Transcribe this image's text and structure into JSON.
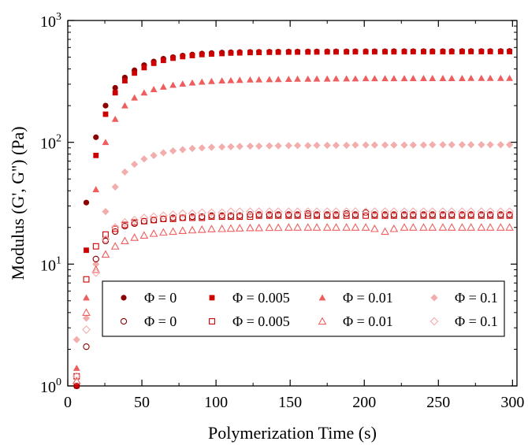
{
  "chart_data": {
    "type": "scatter",
    "title": "",
    "xlabel": "Polymerization Time (s)",
    "ylabel": "Modulus (G', G'') (Pa)",
    "xlim": [
      0,
      303
    ],
    "ylim": [
      1,
      1000
    ],
    "yscale": "log",
    "x_ticks": [
      0,
      50,
      100,
      150,
      200,
      250,
      300
    ],
    "x_tick_labels": [
      "0",
      "50",
      "100",
      "150",
      "200",
      "250",
      "300"
    ],
    "y_ticks": [
      1,
      10,
      100,
      1000
    ],
    "y_tick_labels": [
      {
        "base": "10",
        "exp": "0"
      },
      {
        "base": "10",
        "exp": "1"
      },
      {
        "base": "10",
        "exp": "2"
      },
      {
        "base": "10",
        "exp": "3"
      }
    ],
    "grid": false,
    "legend_position": "lower-right",
    "series": [
      {
        "name": "Φ = 0",
        "modulus": "G'",
        "marker": "circle",
        "filled": true,
        "color": "#8b0000",
        "x": [
          6,
          12.5,
          19,
          25.5,
          32,
          38.5,
          45,
          51.5,
          58,
          64.5,
          71,
          77.5,
          84,
          90.5,
          97,
          104,
          110,
          116,
          123,
          129,
          136,
          142,
          149,
          155,
          162,
          168,
          175,
          181,
          188,
          194,
          201,
          207,
          214,
          220,
          227,
          233,
          240,
          246,
          253,
          259,
          266,
          272,
          279,
          285,
          292,
          298
        ],
        "y": [
          1.0,
          32,
          110,
          200,
          280,
          340,
          390,
          430,
          460,
          485,
          500,
          515,
          525,
          535,
          540,
          545,
          548,
          550,
          552,
          553,
          554,
          555,
          556,
          556,
          557,
          557,
          558,
          558,
          558,
          559,
          559,
          559,
          559,
          560,
          560,
          560,
          560,
          560,
          560,
          561,
          561,
          561,
          561,
          561,
          561,
          562
        ]
      },
      {
        "name": "Φ = 0.005",
        "modulus": "G'",
        "marker": "square",
        "filled": true,
        "color": "#cc0000",
        "x": [
          6,
          12.5,
          19,
          25.5,
          32,
          38.5,
          45,
          51.5,
          58,
          64.5,
          71,
          77.5,
          84,
          90.5,
          97,
          104,
          110,
          116,
          123,
          129,
          136,
          142,
          149,
          155,
          162,
          168,
          175,
          181,
          188,
          194,
          201,
          207,
          214,
          220,
          227,
          233,
          240,
          246,
          253,
          259,
          266,
          272,
          279,
          285,
          292,
          298
        ],
        "y": [
          1.0,
          13,
          78,
          170,
          255,
          320,
          370,
          410,
          445,
          470,
          490,
          505,
          515,
          525,
          530,
          535,
          540,
          542,
          545,
          546,
          548,
          549,
          550,
          550,
          551,
          551,
          552,
          552,
          552,
          553,
          553,
          553,
          553,
          553,
          554,
          554,
          554,
          554,
          554,
          554,
          555,
          555,
          555,
          555,
          555,
          555
        ]
      },
      {
        "name": "Φ = 0.01",
        "modulus": "G'",
        "marker": "triangle",
        "filled": true,
        "color": "#ee5e5e",
        "x": [
          6,
          12.5,
          19,
          25.5,
          32,
          38.5,
          45,
          51.5,
          58,
          64.5,
          71,
          77.5,
          84,
          90.5,
          97,
          104,
          110,
          116,
          123,
          129,
          136,
          142,
          149,
          155,
          162,
          168,
          175,
          181,
          188,
          194,
          201,
          207,
          214,
          220,
          227,
          233,
          240,
          246,
          253,
          259,
          266,
          272,
          279,
          285,
          292,
          298
        ],
        "y": [
          1.4,
          5.3,
          41,
          100,
          155,
          200,
          232,
          255,
          272,
          285,
          295,
          302,
          308,
          313,
          317,
          320,
          322,
          324,
          326,
          327,
          328,
          329,
          330,
          331,
          331,
          332,
          332,
          333,
          333,
          333,
          334,
          334,
          334,
          334,
          334,
          335,
          335,
          335,
          335,
          335,
          335,
          336,
          336,
          336,
          336,
          336
        ]
      },
      {
        "name": "Φ = 0.1",
        "modulus": "G'",
        "marker": "diamond",
        "filled": true,
        "color": "#f4adad",
        "x": [
          6,
          12.5,
          19,
          25.5,
          32,
          38.5,
          45,
          51.5,
          58,
          64.5,
          71,
          77.5,
          84,
          90.5,
          97,
          104,
          110,
          116,
          123,
          129,
          136,
          142,
          149,
          155,
          162,
          168,
          175,
          181,
          188,
          194,
          201,
          207,
          214,
          220,
          227,
          233,
          240,
          246,
          253,
          259,
          266,
          272,
          279,
          285,
          292,
          298
        ],
        "y": [
          2.4,
          3.6,
          10,
          27,
          43,
          57,
          66,
          73,
          78,
          82,
          85,
          87,
          89,
          90,
          91,
          91.5,
          92,
          92.5,
          93,
          93,
          93.5,
          93.5,
          94,
          94,
          94,
          94.5,
          94.5,
          94.5,
          94.5,
          95,
          95,
          95,
          95,
          95,
          95,
          95,
          95,
          95.5,
          95.5,
          95.5,
          95.5,
          95.5,
          95.5,
          95.5,
          95.5,
          95.5
        ]
      },
      {
        "name": "Φ = 0",
        "modulus": "G''",
        "marker": "circle",
        "filled": false,
        "color": "#8b0000",
        "x": [
          6,
          12.5,
          19,
          25.5,
          32,
          38.5,
          45,
          51.5,
          58,
          64.5,
          71,
          77.5,
          84,
          90.5,
          97,
          104,
          110,
          116,
          123,
          129,
          136,
          142,
          149,
          155,
          162,
          168,
          175,
          181,
          188,
          194,
          201,
          207,
          214,
          220,
          227,
          233,
          240,
          246,
          253,
          259,
          266,
          272,
          279,
          285,
          292,
          298
        ],
        "y": [
          1.0,
          2.1,
          11,
          15.5,
          18.5,
          20.5,
          21.5,
          22.5,
          23,
          23.5,
          24,
          24,
          24.5,
          24.5,
          25,
          25,
          25,
          25,
          25.5,
          25.5,
          25.5,
          25.5,
          25.5,
          25.5,
          26,
          25.5,
          25.5,
          25.5,
          26,
          25.5,
          26.5,
          25.5,
          25.5,
          25.5,
          25.5,
          25.5,
          25.5,
          25.5,
          25.5,
          25.5,
          25.5,
          25.5,
          25.5,
          25.5,
          25.5,
          25.5
        ]
      },
      {
        "name": "Φ = 0.005",
        "modulus": "G''",
        "marker": "square",
        "filled": false,
        "color": "#cc0000",
        "x": [
          6,
          12.5,
          19,
          25.5,
          32,
          38.5,
          45,
          51.5,
          58,
          64.5,
          71,
          77.5,
          84,
          90.5,
          97,
          104,
          110,
          116,
          123,
          129,
          136,
          142,
          149,
          155,
          162,
          168,
          175,
          181,
          188,
          194,
          201,
          207,
          214,
          220,
          227,
          233,
          240,
          246,
          253,
          259,
          266,
          272,
          279,
          285,
          292,
          298
        ],
        "y": [
          1.2,
          7.5,
          14,
          17.5,
          19.5,
          21,
          22,
          22.5,
          23,
          23.5,
          23.5,
          24,
          24,
          24,
          24.5,
          24.5,
          24.5,
          24.5,
          24.5,
          25,
          25,
          25,
          25,
          25,
          25,
          25,
          25,
          25,
          25,
          25,
          25,
          25,
          25,
          25,
          25,
          25,
          25,
          25,
          25,
          25,
          25,
          25,
          25,
          25,
          25,
          25
        ]
      },
      {
        "name": "Φ = 0.01",
        "modulus": "G''",
        "marker": "triangle",
        "filled": false,
        "color": "#ee5e5e",
        "x": [
          6,
          12.5,
          19,
          25.5,
          32,
          38.5,
          45,
          51.5,
          58,
          64.5,
          71,
          77.5,
          84,
          90.5,
          97,
          104,
          110,
          116,
          123,
          129,
          136,
          142,
          149,
          155,
          162,
          168,
          175,
          181,
          188,
          194,
          201,
          207,
          214,
          220,
          227,
          233,
          240,
          246,
          253,
          259,
          266,
          272,
          279,
          285,
          292,
          298
        ],
        "y": [
          1.1,
          4.0,
          9,
          12,
          14,
          15.5,
          16.5,
          17.2,
          17.8,
          18.2,
          18.5,
          18.8,
          19,
          19.2,
          19.4,
          19.5,
          19.6,
          19.7,
          19.8,
          19.8,
          19.9,
          19.9,
          20,
          20,
          20,
          20,
          20,
          20,
          20,
          20,
          20,
          19.5,
          18.5,
          19.5,
          20,
          20,
          20,
          20,
          20,
          20,
          20,
          20,
          20,
          20,
          20,
          20
        ]
      },
      {
        "name": "Φ = 0.1",
        "modulus": "G''",
        "marker": "diamond",
        "filled": false,
        "color": "#f4adad",
        "x": [
          6,
          12.5,
          19,
          25.5,
          32,
          38.5,
          45,
          51.5,
          58,
          64.5,
          71,
          77.5,
          84,
          90.5,
          97,
          104,
          110,
          116,
          123,
          129,
          136,
          142,
          149,
          155,
          162,
          168,
          175,
          181,
          188,
          194,
          201,
          207,
          214,
          220,
          227,
          233,
          240,
          246,
          253,
          259,
          266,
          272,
          279,
          285,
          292,
          298
        ],
        "y": [
          1.2,
          2.9,
          8.5,
          16,
          20,
          22,
          23,
          24,
          24.5,
          25,
          25.5,
          26,
          26,
          26.5,
          26.5,
          26.5,
          27,
          27,
          27,
          27,
          27,
          27,
          27,
          27,
          27,
          27,
          27,
          27,
          27,
          27,
          27,
          27,
          27,
          27,
          27,
          27,
          27,
          27,
          27,
          27,
          27,
          27,
          27,
          27,
          27,
          27
        ]
      }
    ]
  }
}
